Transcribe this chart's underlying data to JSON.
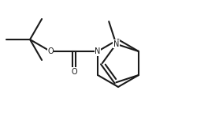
{
  "bg_color": "#ffffff",
  "line_color": "#1a1a1a",
  "lw": 1.5,
  "fs": 7.0,
  "xlim": [
    0,
    2.78
  ],
  "ylim": [
    0,
    1.62
  ],
  "fig_bg": "#ffffff"
}
